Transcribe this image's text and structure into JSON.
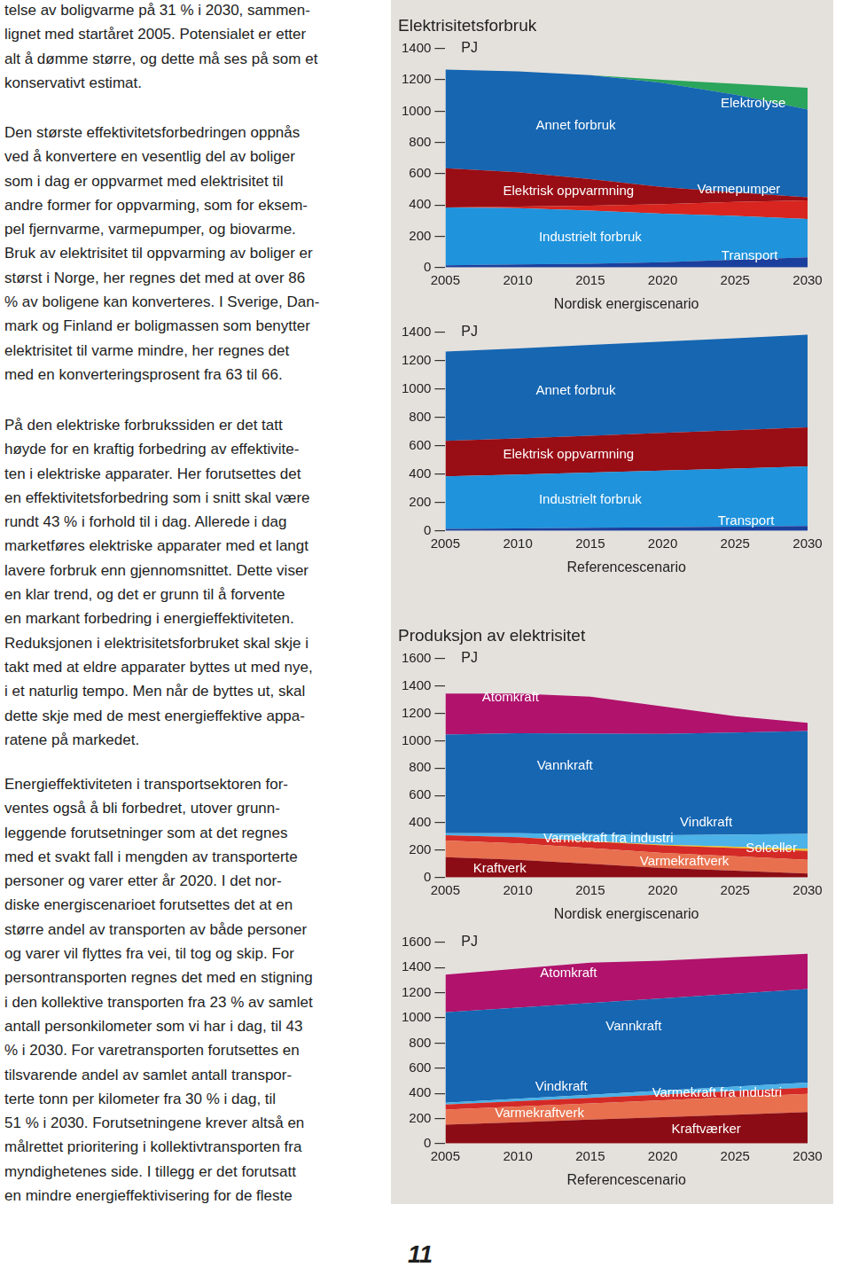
{
  "document": {
    "paragraphs": [
      [
        "telse av boligvarme på 31 % i 2030, sammen-",
        "lignet med startåret 2005. Potensialet er etter",
        "alt å dømme større, og dette må ses på som et",
        "konservativt estimat."
      ],
      [
        "Den største effektivitetsforbedringen oppnås",
        "ved å konvertere en vesentlig del av boliger",
        "som i dag er oppvarmet med elektrisitet til",
        "andre former for oppvarming, som for eksem-",
        "pel fjernvarme, varmepumper, og biovarme.",
        "Bruk av elektrisitet til oppvarming av boliger er",
        "størst i Norge, her regnes det med at over 86",
        "% av boligene kan konverteres. I Sverige, Dan-",
        "mark og Finland er boligmassen som benytter",
        "elektrisitet til varme mindre, her regnes det",
        "med en konverteringsprosent fra 63 til 66."
      ],
      [
        "På den elektriske forbrukssiden er det tatt",
        "høyde for en kraftig forbedring av effektivite-",
        "ten i elektriske apparater. Her forutsettes det",
        "en effektivitetsforbedring som i snitt skal være",
        "rundt 43 % i forhold til i dag. Allerede i dag",
        "marketføres elektriske apparater med et langt",
        "lavere forbruk enn gjennomsnittet. Dette viser",
        "en klar trend, og det er grunn til å forvente",
        "en markant forbedring i energieffektiviteten.",
        "Reduksjonen i elektrisitetsforbruket skal skje i",
        "takt med at eldre apparater byttes ut med nye,",
        "i et naturlig tempo. Men når de byttes ut, skal",
        "dette skje med de mest energieffektive appa-",
        "ratene på markedet."
      ],
      [
        "Energieffektiviteten i transportsektoren for-",
        "ventes også å bli forbedret, utover grunn-",
        "leggende forutsetninger som at det regnes",
        "med et svakt fall i mengden av transporterte",
        "personer og varer etter år 2020. I det nor-",
        "diske energiscenarioet forutsettes det at en",
        "større andel av transporten av både personer",
        "og varer vil flyttes fra vei, til tog og skip. For",
        "persontransporten regnes det med en stigning",
        "i den kollektive transporten fra 23 % av samlet",
        "antall personkilometer som vi har i dag, til 43",
        "% i 2030. For varetransporten forutsettes en",
        "tilsvarende andel av samlet antall transpor-",
        "terte tonn per kilometer fra 30 % i dag, til",
        "51 % i 2030. Forutsetningene krever altså en",
        "målrettet prioritering i kollektivtransporten fra",
        "myndighetenes side. I tillegg er det forutsatt",
        "en mindre energieffektivisering for de fleste"
      ]
    ],
    "page_number": "11"
  },
  "chart_data": [
    {
      "type": "area",
      "stacked": true,
      "title": "Elektrisitetsforbruk",
      "xlabel": "Nordisk energiscenario",
      "ylabel": "PJ",
      "x": [
        2005,
        2010,
        2015,
        2020,
        2025,
        2030
      ],
      "xlim": [
        2005,
        2030
      ],
      "xticks": [
        2005,
        2010,
        2015,
        2020,
        2025,
        2030
      ],
      "ylim": [
        0,
        1400
      ],
      "yticks": [
        0,
        200,
        400,
        600,
        800,
        1000,
        1200,
        1400
      ],
      "grid": false,
      "legend": false,
      "series": [
        {
          "name": "Transport",
          "color": "#1b3f9c",
          "values": [
            15,
            20,
            25,
            35,
            50,
            65
          ]
        },
        {
          "name": "Industrielt forbruk",
          "color": "#1f93dc",
          "values": [
            370,
            360,
            340,
            310,
            280,
            245
          ]
        },
        {
          "name": "Varmepumper",
          "color": "#d8251f",
          "values": [
            0,
            10,
            30,
            60,
            90,
            120
          ]
        },
        {
          "name": "Elektrisk oppvarmning",
          "color": "#990d15",
          "values": [
            250,
            220,
            170,
            110,
            60,
            20
          ]
        },
        {
          "name": "Annet forbruk",
          "color": "#1666b2",
          "values": [
            630,
            645,
            665,
            665,
            625,
            560
          ]
        },
        {
          "name": "Elektrolyse",
          "color": "#2aa55b",
          "values": [
            0,
            0,
            0,
            20,
            70,
            140
          ]
        }
      ]
    },
    {
      "type": "area",
      "stacked": true,
      "xlabel": "Referencescenario",
      "ylabel": "PJ",
      "x": [
        2005,
        2010,
        2015,
        2020,
        2025,
        2030
      ],
      "xlim": [
        2005,
        2030
      ],
      "xticks": [
        2005,
        2010,
        2015,
        2020,
        2025,
        2030
      ],
      "ylim": [
        0,
        1400
      ],
      "yticks": [
        0,
        200,
        400,
        600,
        800,
        1000,
        1200,
        1400
      ],
      "grid": false,
      "legend": false,
      "series": [
        {
          "name": "Transport",
          "color": "#1b3f9c",
          "values": [
            15,
            18,
            22,
            26,
            30,
            35
          ]
        },
        {
          "name": "Industrielt forbruk",
          "color": "#1f93dc",
          "values": [
            370,
            380,
            390,
            400,
            410,
            420
          ]
        },
        {
          "name": "Elektrisk oppvarmning",
          "color": "#990d15",
          "values": [
            250,
            255,
            260,
            265,
            270,
            275
          ]
        },
        {
          "name": "Annet forbruk",
          "color": "#1666b2",
          "values": [
            630,
            635,
            640,
            645,
            650,
            655
          ]
        }
      ]
    },
    {
      "type": "area",
      "stacked": true,
      "title": "Produksjon av elektrisitet",
      "xlabel": "Nordisk energiscenario",
      "ylabel": "PJ",
      "x": [
        2005,
        2010,
        2015,
        2020,
        2025,
        2030
      ],
      "xlim": [
        2005,
        2030
      ],
      "xticks": [
        2005,
        2010,
        2015,
        2020,
        2025,
        2030
      ],
      "ylim": [
        0,
        1600
      ],
      "yticks": [
        0,
        200,
        400,
        600,
        800,
        1000,
        1200,
        1400,
        1600
      ],
      "grid": false,
      "legend": false,
      "series": [
        {
          "name": "Kraftverk",
          "color": "#8c0c15",
          "values": [
            150,
            130,
            100,
            70,
            50,
            30
          ]
        },
        {
          "name": "Varmekraftverk",
          "color": "#e8704e",
          "values": [
            120,
            120,
            115,
            110,
            105,
            100
          ]
        },
        {
          "name": "Varmekraft fra industri",
          "color": "#d42a27",
          "values": [
            40,
            45,
            50,
            55,
            60,
            65
          ]
        },
        {
          "name": "Solceller",
          "color": "#f2c21a",
          "values": [
            0,
            0,
            2,
            5,
            10,
            15
          ]
        },
        {
          "name": "Vindkraft",
          "color": "#4cb2e8",
          "values": [
            15,
            30,
            50,
            70,
            90,
            110
          ]
        },
        {
          "name": "Vannkraft",
          "color": "#1666b2",
          "values": [
            720,
            730,
            735,
            740,
            745,
            750
          ]
        },
        {
          "name": "Atomkraft",
          "color": "#b0126c",
          "values": [
            300,
            290,
            270,
            200,
            120,
            60
          ]
        }
      ]
    },
    {
      "type": "area",
      "stacked": true,
      "xlabel": "Referencescenario",
      "ylabel": "PJ",
      "x": [
        2005,
        2010,
        2015,
        2020,
        2025,
        2030
      ],
      "xlim": [
        2005,
        2030
      ],
      "xticks": [
        2005,
        2010,
        2015,
        2020,
        2025,
        2030
      ],
      "ylim": [
        0,
        1600
      ],
      "yticks": [
        0,
        200,
        400,
        600,
        800,
        1000,
        1200,
        1400,
        1600
      ],
      "grid": false,
      "legend": false,
      "series": [
        {
          "name": "Kraftværker",
          "color": "#8c0c15",
          "values": [
            150,
            170,
            190,
            210,
            230,
            250
          ]
        },
        {
          "name": "Varmekraftverk",
          "color": "#e8704e",
          "values": [
            120,
            125,
            130,
            135,
            140,
            145
          ]
        },
        {
          "name": "Varmekraft fra industri",
          "color": "#d42a27",
          "values": [
            40,
            42,
            44,
            46,
            48,
            50
          ]
        },
        {
          "name": "Vindkraft",
          "color": "#4cb2e8",
          "values": [
            15,
            20,
            25,
            30,
            35,
            40
          ]
        },
        {
          "name": "Vannkraft",
          "color": "#1666b2",
          "values": [
            720,
            725,
            730,
            735,
            740,
            745
          ]
        },
        {
          "name": "Atomkraft",
          "color": "#b0126c",
          "values": [
            300,
            310,
            320,
            300,
            290,
            280
          ]
        }
      ]
    }
  ]
}
